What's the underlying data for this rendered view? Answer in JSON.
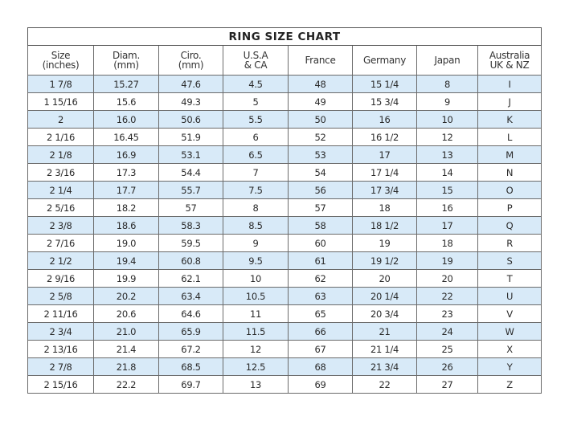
{
  "title": "RING SIZE CHART",
  "headers": [
    [
      "Size",
      "(inches)"
    ],
    [
      "Diam.",
      "(mm)"
    ],
    [
      "Ciro.",
      "(mm)"
    ],
    [
      "U.S.A",
      "& CA"
    ],
    [
      "France",
      ""
    ],
    [
      "Germany",
      ""
    ],
    [
      "Japan",
      ""
    ],
    [
      "Australia",
      "UK & NZ"
    ]
  ],
  "shade_color": "#d8eaf8",
  "rows": [
    [
      "1 7/8",
      "15.27",
      "47.6",
      "4.5",
      "48",
      "15 1/4",
      "8",
      "I"
    ],
    [
      "1 15/16",
      "15.6",
      "49.3",
      "5",
      "49",
      "15 3/4",
      "9",
      "J"
    ],
    [
      "2",
      "16.0",
      "50.6",
      "5.5",
      "50",
      "16",
      "10",
      "K"
    ],
    [
      "2 1/16",
      "16.45",
      "51.9",
      "6",
      "52",
      "16 1/2",
      "12",
      "L"
    ],
    [
      "2 1/8",
      "16.9",
      "53.1",
      "6.5",
      "53",
      "17",
      "13",
      "M"
    ],
    [
      "2 3/16",
      "17.3",
      "54.4",
      "7",
      "54",
      "17 1/4",
      "14",
      "N"
    ],
    [
      "2 1/4",
      "17.7",
      "55.7",
      "7.5",
      "56",
      "17 3/4",
      "15",
      "O"
    ],
    [
      "2 5/16",
      "18.2",
      "57",
      "8",
      "57",
      "18",
      "16",
      "P"
    ],
    [
      "2 3/8",
      "18.6",
      "58.3",
      "8.5",
      "58",
      "18 1/2",
      "17",
      "Q"
    ],
    [
      "2 7/16",
      "19.0",
      "59.5",
      "9",
      "60",
      "19",
      "18",
      "R"
    ],
    [
      "2 1/2",
      "19.4",
      "60.8",
      "9.5",
      "61",
      "19 1/2",
      "19",
      "S"
    ],
    [
      "2 9/16",
      "19.9",
      "62.1",
      "10",
      "62",
      "20",
      "20",
      "T"
    ],
    [
      "2 5/8",
      "20.2",
      "63.4",
      "10.5",
      "63",
      "20 1/4",
      "22",
      "U"
    ],
    [
      "2 11/16",
      "20.6",
      "64.6",
      "11",
      "65",
      "20 3/4",
      "23",
      "V"
    ],
    [
      "2 3/4",
      "21.0",
      "65.9",
      "11.5",
      "66",
      "21",
      "24",
      "W"
    ],
    [
      "2 13/16",
      "21.4",
      "67.2",
      "12",
      "67",
      "21 1/4",
      "25",
      "X"
    ],
    [
      "2 7/8",
      "21.8",
      "68.5",
      "12.5",
      "68",
      "21 3/4",
      "26",
      "Y"
    ],
    [
      "2 15/16",
      "22.2",
      "69.7",
      "13",
      "69",
      "22",
      "27",
      "Z"
    ]
  ]
}
